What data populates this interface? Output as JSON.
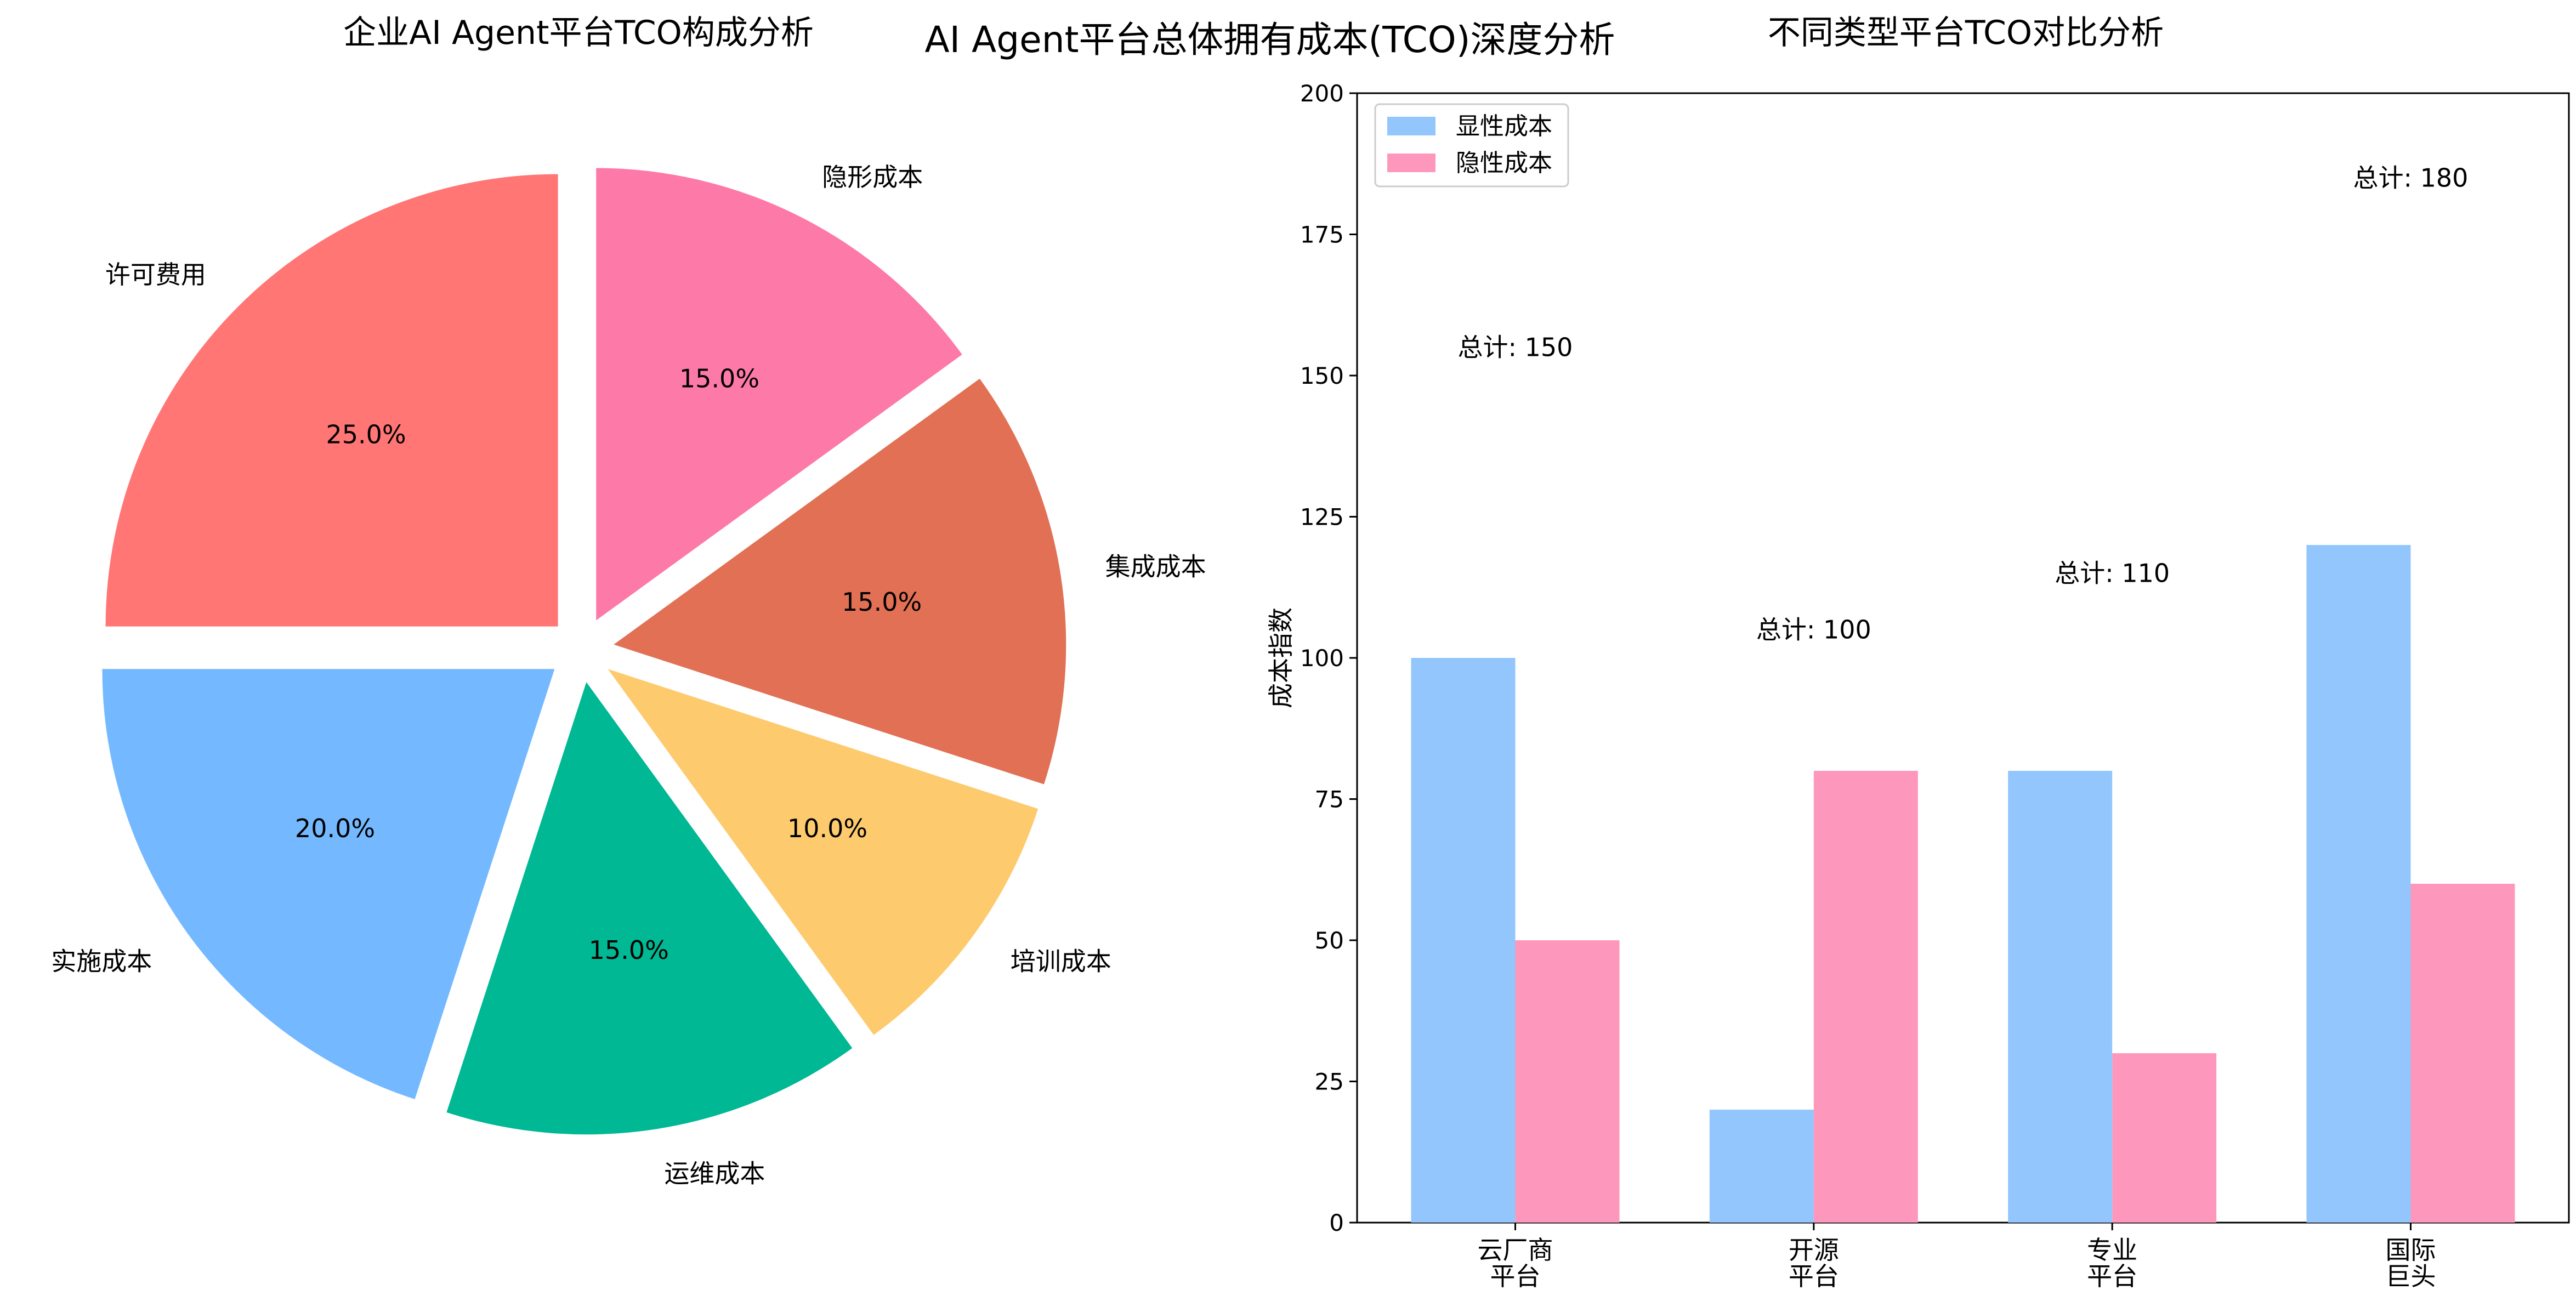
{
  "figure": {
    "title": "AI Agent平台总体拥有成本(TCO)深度分析"
  },
  "chart_data": [
    {
      "type": "pie",
      "title": "企业AI Agent平台TCO构成分析",
      "slices": [
        {
          "label": "许可费用",
          "value": 25.0,
          "pct_label": "25.0%",
          "color": "#ff7675"
        },
        {
          "label": "实施成本",
          "value": 20.0,
          "pct_label": "20.0%",
          "color": "#74b9ff"
        },
        {
          "label": "运维成本",
          "value": 15.0,
          "pct_label": "15.0%",
          "color": "#00b894"
        },
        {
          "label": "培训成本",
          "value": 10.0,
          "pct_label": "10.0%",
          "color": "#fdcb6e"
        },
        {
          "label": "集成成本",
          "value": 15.0,
          "pct_label": "15.0%",
          "color": "#e17055"
        },
        {
          "label": "隐形成本",
          "value": 15.0,
          "pct_label": "15.0%",
          "color": "#fd79a8"
        }
      ],
      "start_angle_deg": 90,
      "direction": "counterclockwise"
    },
    {
      "type": "bar",
      "title": "不同类型平台TCO对比分析",
      "ylabel": "成本指数",
      "ylim": [
        0,
        200
      ],
      "yticks": [
        0,
        25,
        50,
        75,
        100,
        125,
        150,
        175,
        200
      ],
      "categories": [
        [
          "云厂商",
          "平台"
        ],
        [
          "开源",
          "平台"
        ],
        [
          "专业",
          "平台"
        ],
        [
          "国际",
          "巨头"
        ]
      ],
      "series": [
        {
          "name": "显性成本",
          "values": [
            100,
            20,
            80,
            120
          ],
          "color": "#92c6fd"
        },
        {
          "name": "隐性成本",
          "values": [
            50,
            80,
            30,
            60
          ],
          "color": "#fd98bc"
        }
      ],
      "totals": [
        "总计: 150",
        "总计: 100",
        "总计: 110",
        "总计: 180"
      ],
      "legend": "top-left",
      "grid": false
    }
  ]
}
